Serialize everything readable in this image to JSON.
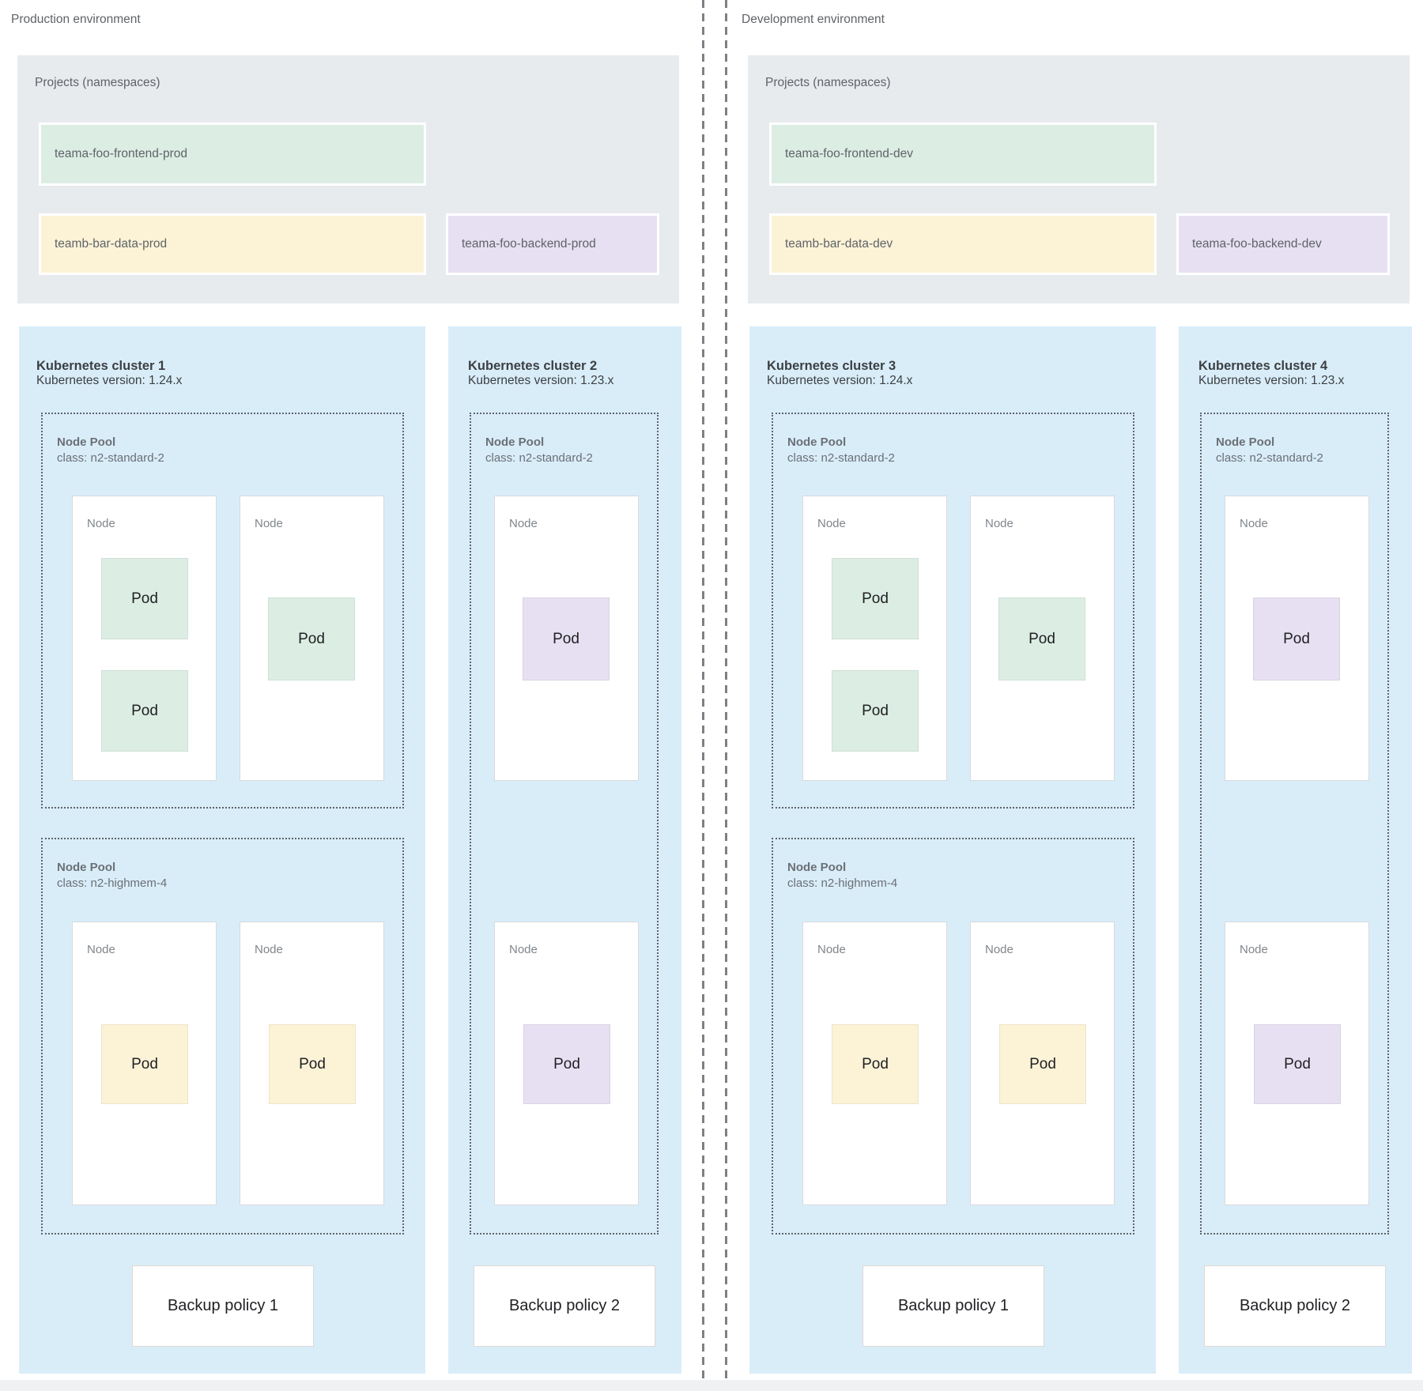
{
  "colors": {
    "page_bg": "#ffffff",
    "projects_panel_bg": "#e8ebee",
    "cluster_panel_bg": "#d9edf9",
    "green": "#dcede4",
    "yellow": "#fcf3d7",
    "purple": "#e7e0f2",
    "dotted_border": "#5f6368",
    "divider_dash": "#7d8084"
  },
  "environments": [
    {
      "label": "Production environment",
      "projects": {
        "title": "Projects (namespaces)",
        "items": [
          {
            "name": "teama-foo-frontend-prod",
            "color": "green"
          },
          {
            "name": "teamb-bar-data-prod",
            "color": "yellow"
          },
          {
            "name": "teama-foo-backend-prod",
            "color": "purple"
          }
        ]
      },
      "clusters": [
        {
          "name": "Kubernetes cluster 1",
          "version": "Kubernetes version: 1.24.x",
          "backup_policy": "Backup policy 1",
          "node_pools": [
            {
              "label": "Node Pool",
              "machine_class": "class: n2-standard-2",
              "nodes": [
                {
                  "label": "Node",
                  "pods": [
                    {
                      "label": "Pod",
                      "color": "green"
                    },
                    {
                      "label": "Pod",
                      "color": "green"
                    }
                  ]
                },
                {
                  "label": "Node",
                  "pods": [
                    {
                      "label": "Pod",
                      "color": "green"
                    }
                  ]
                }
              ]
            },
            {
              "label": "Node Pool",
              "machine_class": "class: n2-highmem-4",
              "nodes": [
                {
                  "label": "Node",
                  "pods": [
                    {
                      "label": "Pod",
                      "color": "yellow"
                    }
                  ]
                },
                {
                  "label": "Node",
                  "pods": [
                    {
                      "label": "Pod",
                      "color": "yellow"
                    }
                  ]
                }
              ]
            }
          ]
        },
        {
          "name": "Kubernetes cluster 2",
          "version": "Kubernetes version: 1.23.x",
          "backup_policy": "Backup policy 2",
          "node_pools": [
            {
              "label": "Node Pool",
              "machine_class": "class: n2-standard-2",
              "nodes": [
                {
                  "label": "Node",
                  "pods": [
                    {
                      "label": "Pod",
                      "color": "purple"
                    }
                  ]
                },
                {
                  "label": "Node",
                  "pods": [
                    {
                      "label": "Pod",
                      "color": "purple"
                    }
                  ]
                }
              ]
            }
          ]
        }
      ]
    },
    {
      "label": "Development environment",
      "projects": {
        "title": "Projects (namespaces)",
        "items": [
          {
            "name": "teama-foo-frontend-dev",
            "color": "green"
          },
          {
            "name": "teamb-bar-data-dev",
            "color": "yellow"
          },
          {
            "name": "teama-foo-backend-dev",
            "color": "purple"
          }
        ]
      },
      "clusters": [
        {
          "name": "Kubernetes cluster 3",
          "version": "Kubernetes version: 1.24.x",
          "backup_policy": "Backup policy 1",
          "node_pools": [
            {
              "label": "Node Pool",
              "machine_class": "class: n2-standard-2",
              "nodes": [
                {
                  "label": "Node",
                  "pods": [
                    {
                      "label": "Pod",
                      "color": "green"
                    },
                    {
                      "label": "Pod",
                      "color": "green"
                    }
                  ]
                },
                {
                  "label": "Node",
                  "pods": [
                    {
                      "label": "Pod",
                      "color": "green"
                    }
                  ]
                }
              ]
            },
            {
              "label": "Node Pool",
              "machine_class": "class: n2-highmem-4",
              "nodes": [
                {
                  "label": "Node",
                  "pods": [
                    {
                      "label": "Pod",
                      "color": "yellow"
                    }
                  ]
                },
                {
                  "label": "Node",
                  "pods": [
                    {
                      "label": "Pod",
                      "color": "yellow"
                    }
                  ]
                }
              ]
            }
          ]
        },
        {
          "name": "Kubernetes cluster 4",
          "version": "Kubernetes version: 1.23.x",
          "backup_policy": "Backup policy 2",
          "node_pools": [
            {
              "label": "Node Pool",
              "machine_class": "class: n2-standard-2",
              "nodes": [
                {
                  "label": "Node",
                  "pods": [
                    {
                      "label": "Pod",
                      "color": "purple"
                    }
                  ]
                },
                {
                  "label": "Node",
                  "pods": [
                    {
                      "label": "Pod",
                      "color": "purple"
                    }
                  ]
                }
              ]
            }
          ]
        }
      ]
    }
  ]
}
